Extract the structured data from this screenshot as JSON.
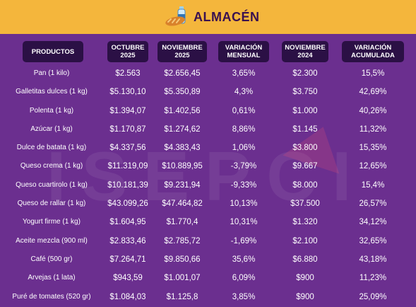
{
  "header": {
    "title": "ALMACÉN",
    "icon": "grocery-bread-bottle-icon"
  },
  "watermark": "ISEPCI",
  "columns": [
    {
      "line1": "PRODUCTOS",
      "line2": ""
    },
    {
      "line1": "OCTUBRE",
      "line2": "2025"
    },
    {
      "line1": "NOVIEMBRE",
      "line2": "2025"
    },
    {
      "line1": "VARIACIÓN",
      "line2": "MENSUAL"
    },
    {
      "line1": "NOVIEMBRE",
      "line2": "2024"
    },
    {
      "line1": "VARIACIÓN",
      "line2": "ACUMULADA"
    }
  ],
  "rows": [
    [
      "Pan (1 kilo)",
      "$2.563",
      "$2.656,45",
      "3,65%",
      "$2.300",
      "15,5%"
    ],
    [
      "Galletitas dulces (1 kg)",
      "$5.130,10",
      "$5.350,89",
      "4,3%",
      "$3.750",
      "42,69%"
    ],
    [
      "Polenta (1 kg)",
      "$1.394,07",
      "$1.402,56",
      "0,61%",
      "$1.000",
      "40,26%"
    ],
    [
      "Azúcar (1 kg)",
      "$1.170,87",
      "$1.274,62",
      "8,86%",
      "$1.145",
      "11,32%"
    ],
    [
      "Dulce de batata (1 kg)",
      "$4.337,56",
      "$4.383,43",
      "1,06%",
      "$3.800",
      "15,35%"
    ],
    [
      "Queso crema (1 kg)",
      "$11.319,09",
      "$10.889,95",
      "-3,79%",
      "$9.667",
      "12,65%"
    ],
    [
      "Queso cuartirolo (1 kg)",
      "$10.181,39",
      "$9.231,94",
      "-9,33%",
      "$8.000",
      "15,4%"
    ],
    [
      "Queso de rallar (1 kg)",
      "$43.099,26",
      "$47.464,82",
      "10,13%",
      "$37.500",
      "26,57%"
    ],
    [
      "Yogurt firme (1 kg)",
      "$1.604,95",
      "$1.770,4",
      "10,31%",
      "$1.320",
      "34,12%"
    ],
    [
      "Aceite mezcla (900 ml)",
      "$2.833,46",
      "$2.785,72",
      "-1,69%",
      "$2.100",
      "32,65%"
    ],
    [
      "Café (500 gr)",
      "$7.264,71",
      "$9.850,66",
      "35,6%",
      "$6.880",
      "43,18%"
    ],
    [
      "Arvejas (1 lata)",
      "$943,59",
      "$1.001,07",
      "6,09%",
      "$900",
      "11,23%"
    ],
    [
      "Puré de tomates (520 gr)",
      "$1.084,03",
      "$1.125,8",
      "3,85%",
      "$900",
      "25,09%"
    ]
  ]
}
